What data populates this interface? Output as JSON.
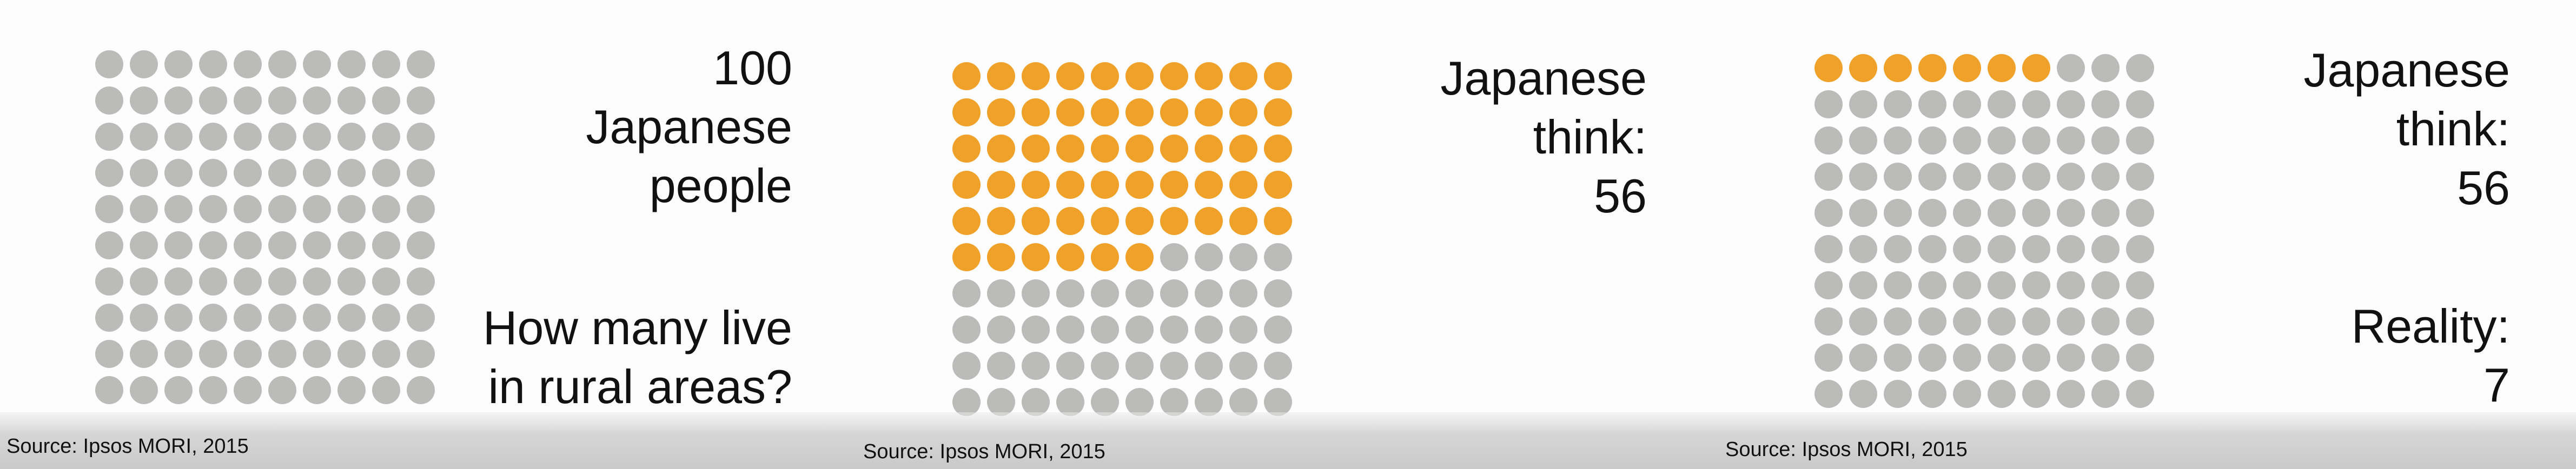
{
  "chart_data": [
    {
      "type": "waffle",
      "total": 100,
      "highlighted": 0,
      "rows": 10,
      "columns": 10,
      "heading_lines": [
        "100",
        "Japanese",
        "people"
      ],
      "question_lines": [
        "How many live",
        "in rural areas?"
      ],
      "source": "Source: Ipsos MORI, 2015"
    },
    {
      "type": "waffle",
      "total": 100,
      "highlighted": 56,
      "rows": 10,
      "columns": 10,
      "heading_lines": [
        "Japanese",
        "think:",
        "56"
      ],
      "source": "Source: Ipsos MORI, 2015"
    },
    {
      "type": "waffle",
      "total": 100,
      "highlighted": 7,
      "rows": 10,
      "columns": 10,
      "heading_lines": [
        "Japanese",
        "think:",
        "56"
      ],
      "reality_label": "Reality:",
      "reality_value": "7",
      "source": "Source: Ipsos MORI, 2015"
    }
  ],
  "colors": {
    "highlight": "#EFA12A",
    "base": "#BBBBBA",
    "text": "#111111"
  }
}
